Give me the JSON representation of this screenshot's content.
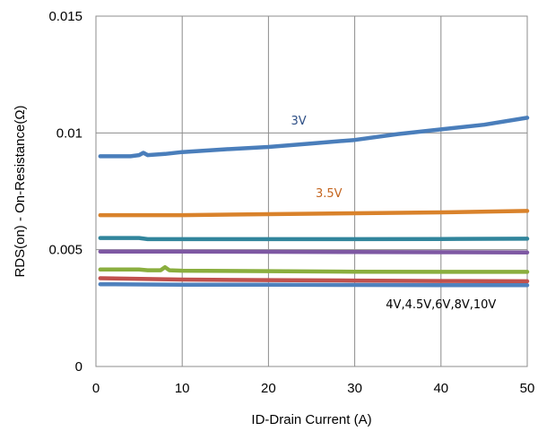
{
  "chart_data": {
    "type": "line",
    "title": "",
    "xlabel": "ID-Drain Current (A)",
    "ylabel": "RDS(on) - On-Resistance(Ω)",
    "xlim": [
      0,
      50
    ],
    "ylim": [
      0,
      0.015
    ],
    "x_ticks": [
      "0",
      "10",
      "20",
      "30",
      "40",
      "50"
    ],
    "y_ticks": [
      "0",
      "0.005",
      "0.01",
      "0.015"
    ],
    "grid": true,
    "series": [
      {
        "name": "3V",
        "color": "#4A7EBB",
        "x": [
          0.5,
          2,
          4,
          5,
          5.5,
          6,
          8,
          10,
          15,
          20,
          25,
          30,
          35,
          40,
          45,
          50
        ],
        "y": [
          0.009,
          0.009,
          0.009,
          0.00905,
          0.00915,
          0.00905,
          0.0091,
          0.00918,
          0.0093,
          0.0094,
          0.00955,
          0.0097,
          0.00995,
          0.01015,
          0.01035,
          0.01065
        ]
      },
      {
        "name": "3.5V",
        "color": "#D9822B",
        "x": [
          0.5,
          10,
          20,
          30,
          40,
          50
        ],
        "y": [
          0.00648,
          0.00648,
          0.00652,
          0.00656,
          0.0066,
          0.00666
        ]
      },
      {
        "name": "",
        "color": "#31859C",
        "x": [
          0.5,
          5,
          6,
          10,
          20,
          30,
          40,
          50
        ],
        "y": [
          0.0055,
          0.0055,
          0.00545,
          0.00545,
          0.00545,
          0.00545,
          0.00546,
          0.00547
        ]
      },
      {
        "name": "",
        "color": "#7E58A3",
        "x": [
          0.5,
          10,
          20,
          30,
          40,
          50
        ],
        "y": [
          0.00492,
          0.00492,
          0.00491,
          0.0049,
          0.00489,
          0.00488
        ]
      },
      {
        "name": "",
        "color": "#8AAE3E",
        "x": [
          0.5,
          5,
          6,
          7.5,
          8,
          8.5,
          10,
          20,
          30,
          40,
          50
        ],
        "y": [
          0.00415,
          0.00415,
          0.00412,
          0.00412,
          0.00425,
          0.00412,
          0.0041,
          0.00408,
          0.00406,
          0.00405,
          0.00405
        ]
      },
      {
        "name": "",
        "color": "#C0504D",
        "x": [
          0.5,
          10,
          20,
          30,
          40,
          50
        ],
        "y": [
          0.00378,
          0.00372,
          0.0037,
          0.00368,
          0.00366,
          0.00365
        ]
      },
      {
        "name": "",
        "color": "#4F81BD",
        "x": [
          0.5,
          10,
          20,
          30,
          40,
          50
        ],
        "y": [
          0.00352,
          0.0035,
          0.0035,
          0.00349,
          0.00348,
          0.00348
        ]
      }
    ],
    "annotations": [
      {
        "text": "3V",
        "x": 23.5,
        "y": 0.01035,
        "color": "#2E4F86"
      },
      {
        "text": "3.5V",
        "x": 27,
        "y": 0.00725,
        "color": "#C4651F"
      },
      {
        "text": "4V,4.5V,6V,8V,10V",
        "x": 40,
        "y": 0.0025,
        "color": "#000000"
      }
    ]
  }
}
